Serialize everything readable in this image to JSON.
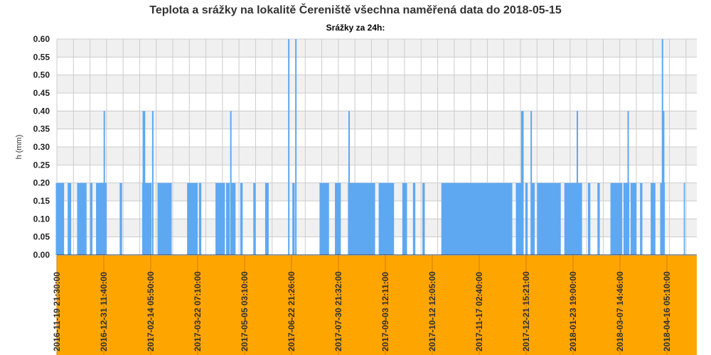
{
  "title": "Teplota a srážky na lokalitě Čereniště všechna naměřená data do 2018-05-15",
  "subtitle": "Srážky za 24h:",
  "chart_data": {
    "type": "bar",
    "title": "Teplota a srážky na lokalitě Čereniště všechna naměřená data do 2018-05-15",
    "subtitle": "Srážky za 24h:",
    "ylabel": "h (mm)",
    "xlabel": "",
    "ylim": [
      0,
      0.6
    ],
    "yticks": [
      "0.00",
      "0.05",
      "0.10",
      "0.15",
      "0.20",
      "0.25",
      "0.30",
      "0.35",
      "0.40",
      "0.45",
      "0.50",
      "0.55",
      "0.60"
    ],
    "xlim": [
      "2016-11-19 21:30:00",
      "2018-05-15 00:00:00"
    ],
    "xticks": [
      "2016-11-19 21:30:00",
      "2016-12-31 11:40:00",
      "2017-02-14 05:50:00",
      "2017-03-22 07:10:00",
      "2017-05-05 03:10:00",
      "2017-06-22 21:26:00",
      "2017-07-30 21:32:00",
      "2017-09-03 12:11:00",
      "2017-10-12 12:05:00",
      "2017-11-17 02:40:00",
      "2017-12-21 15:21:00",
      "2018-01-23 19:00:00",
      "2018-03-07 14:46:00",
      "2018-04-16 05:10:00"
    ],
    "grid": true,
    "legend": "none",
    "colors": {
      "bar": "#5ea8f2",
      "xaxis_band": "#ffa500",
      "grid": "#cccccc",
      "band_alt": "#f0f0f0"
    },
    "series": [
      {
        "periods_0_20": [
          [
            "2016-11-19",
            "2016-11-26"
          ],
          [
            "2016-11-29",
            "2016-12-02"
          ],
          [
            "2016-12-07",
            "2016-12-15"
          ],
          [
            "2016-12-18",
            "2016-12-20"
          ],
          [
            "2016-12-23",
            "2017-01-01"
          ],
          [
            "2017-01-12",
            "2017-01-14"
          ],
          [
            "2017-01-31",
            "2017-02-08"
          ],
          [
            "2017-02-13",
            "2017-02-25"
          ],
          [
            "2017-03-10",
            "2017-03-19"
          ],
          [
            "2017-03-20",
            "2017-03-22"
          ],
          [
            "2017-04-03",
            "2017-04-11"
          ],
          [
            "2017-04-12",
            "2017-04-15"
          ],
          [
            "2017-04-16",
            "2017-04-20"
          ],
          [
            "2017-04-24",
            "2017-04-26"
          ],
          [
            "2017-05-05",
            "2017-05-07"
          ],
          [
            "2017-05-15",
            "2017-05-18"
          ],
          [
            "2017-06-07",
            "2017-06-09"
          ],
          [
            "2017-06-30",
            "2017-07-08"
          ],
          [
            "2017-07-13",
            "2017-07-18"
          ],
          [
            "2017-07-24",
            "2017-08-16"
          ],
          [
            "2017-08-19",
            "2017-09-01"
          ],
          [
            "2017-09-08",
            "2017-09-12"
          ],
          [
            "2017-09-17",
            "2017-09-19"
          ],
          [
            "2017-09-25",
            "2017-09-27"
          ],
          [
            "2017-10-11",
            "2017-12-10"
          ],
          [
            "2017-12-13",
            "2017-12-18"
          ],
          [
            "2017-12-21",
            "2017-12-23"
          ],
          [
            "2017-12-26",
            "2017-12-29"
          ],
          [
            "2017-12-31",
            "2018-01-20"
          ],
          [
            "2018-01-23",
            "2018-02-07"
          ],
          [
            "2018-02-12",
            "2018-02-14"
          ],
          [
            "2018-02-20",
            "2018-02-22"
          ],
          [
            "2018-03-03",
            "2018-03-13"
          ],
          [
            "2018-03-14",
            "2018-03-19"
          ],
          [
            "2018-03-20",
            "2018-03-25"
          ],
          [
            "2018-03-28",
            "2018-03-30"
          ],
          [
            "2018-04-06",
            "2018-04-10"
          ],
          [
            "2018-04-14",
            "2018-04-18"
          ],
          [
            "2018-05-04",
            "2018-05-05"
          ]
        ],
        "spikes": [
          {
            "date": "2016-12-30",
            "value": 0.4
          },
          {
            "date": "2017-02-01",
            "value": 0.4
          },
          {
            "date": "2017-02-02",
            "value": 0.4
          },
          {
            "date": "2017-02-09",
            "value": 0.4
          },
          {
            "date": "2017-04-16",
            "value": 0.4
          },
          {
            "date": "2017-06-04",
            "value": 0.6
          },
          {
            "date": "2017-06-10",
            "value": 0.6
          },
          {
            "date": "2017-07-25",
            "value": 0.4
          },
          {
            "date": "2017-12-18",
            "value": 0.4
          },
          {
            "date": "2017-12-19",
            "value": 0.4
          },
          {
            "date": "2017-12-26",
            "value": 0.4
          },
          {
            "date": "2018-02-03",
            "value": 0.4
          },
          {
            "date": "2018-03-18",
            "value": 0.4
          },
          {
            "date": "2018-04-16",
            "value": 0.6
          },
          {
            "date": "2018-04-17",
            "value": 0.4
          }
        ]
      }
    ]
  }
}
